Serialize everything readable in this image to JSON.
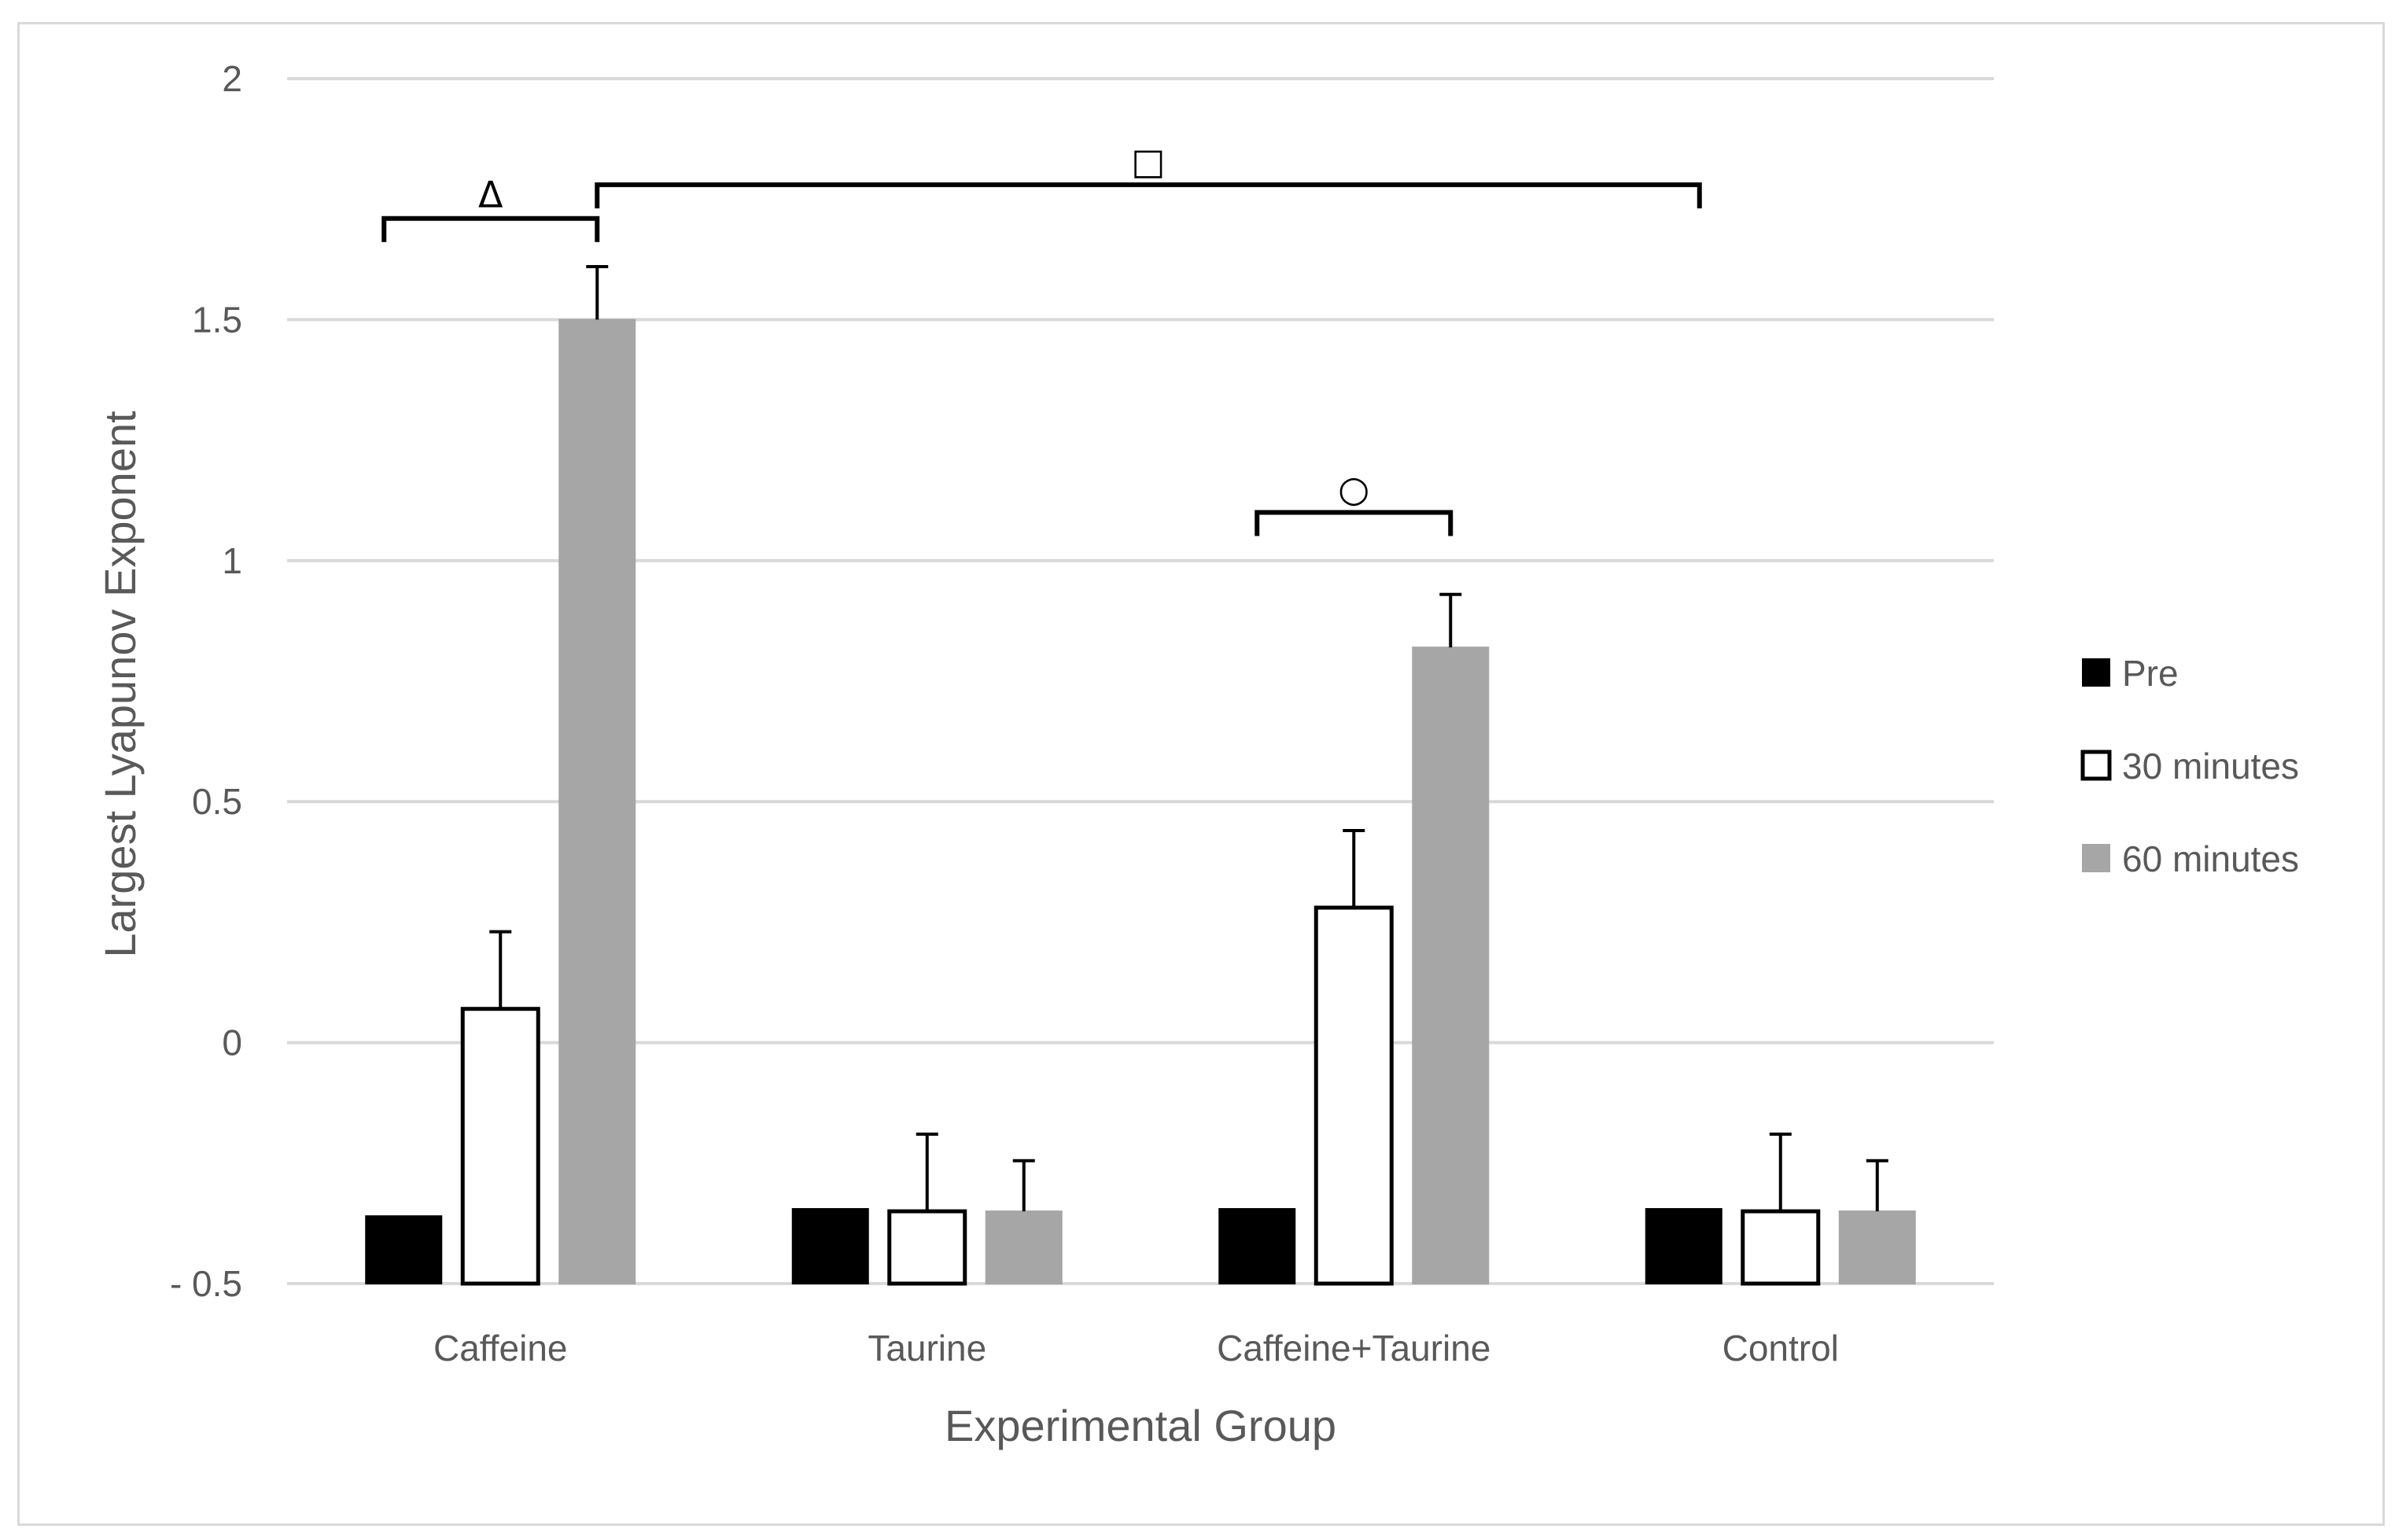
{
  "chart_data": {
    "type": "bar",
    "title": "",
    "xlabel": "Experimental Group",
    "ylabel": "Largest Lyapunov Exponent",
    "categories": [
      "Caffeine",
      "Taurine",
      "Caffeine+Taurine",
      "Control"
    ],
    "ylim": [
      -0.5,
      2
    ],
    "yticks": [
      -0.5,
      0,
      0.5,
      1,
      1.5,
      2
    ],
    "ytick_labels": [
      "- 0.5",
      "0",
      "0.5",
      "1",
      "1.5",
      "2"
    ],
    "grid": true,
    "legend_position": "right",
    "series": [
      {
        "name": "Pre",
        "values": [
          -0.36,
          -0.345,
          -0.345,
          -0.345
        ],
        "errors": [
          0,
          0,
          0,
          0
        ],
        "fill": "#000000",
        "stroke": "#000000"
      },
      {
        "name": "30 minutes",
        "values": [
          0.07,
          -0.35,
          0.28,
          -0.35
        ],
        "errors": [
          0.16,
          0.16,
          0.16,
          0.16
        ],
        "fill": "#ffffff",
        "stroke": "#000000"
      },
      {
        "name": "60 minutes",
        "values": [
          1.5,
          -0.35,
          0.82,
          -0.35
        ],
        "errors": [
          0.11,
          0.105,
          0.11,
          0.105
        ],
        "fill": "#a6a6a6",
        "stroke": "#a6a6a6"
      }
    ],
    "significance": [
      {
        "symbol": "Δ",
        "from": {
          "group": 0,
          "series": 0
        },
        "to": {
          "group": 0,
          "series": 2
        },
        "level": 1.71
      },
      {
        "symbol": "□",
        "from": {
          "group": 0,
          "series": 2
        },
        "to": {
          "group": 3,
          "series": 0
        },
        "level": 1.78
      },
      {
        "symbol": "○",
        "from": {
          "group": 2,
          "series": 0
        },
        "to": {
          "group": 2,
          "series": 2
        },
        "level": 1.1
      }
    ]
  },
  "colors": {
    "grid": "#d9d9d9",
    "text": "#595959",
    "frame": "#d9d9d9"
  }
}
